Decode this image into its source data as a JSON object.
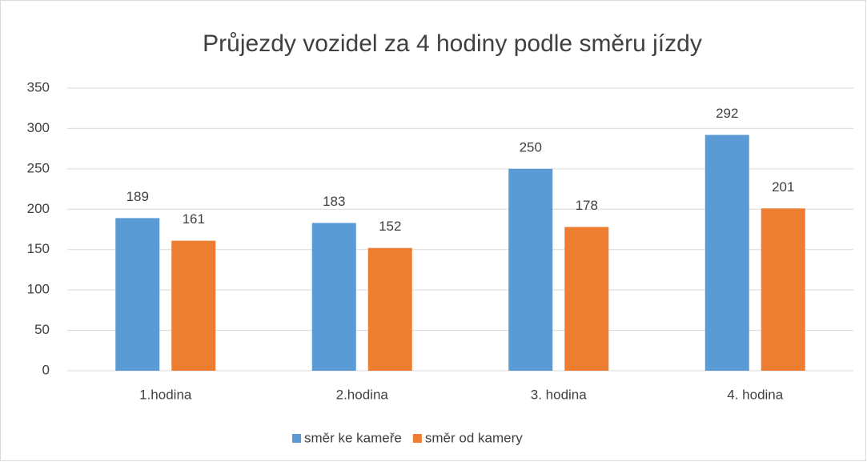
{
  "chart_data": {
    "type": "bar",
    "title": "Průjezdy vozidel za 4 hodiny podle směru jízdy",
    "categories": [
      "1.hodina",
      "2.hodina",
      "3. hodina",
      "4. hodina"
    ],
    "series": [
      {
        "name": "směr ke kameře",
        "color": "#5b9bd5",
        "values": [
          189,
          183,
          250,
          292
        ]
      },
      {
        "name": "směr od kamery",
        "color": "#ed7d31",
        "values": [
          161,
          152,
          178,
          201
        ]
      }
    ],
    "ylim": [
      0,
      350
    ],
    "yticks": [
      0,
      50,
      100,
      150,
      200,
      250,
      300,
      350
    ],
    "grid": true,
    "legend": "bottom"
  }
}
